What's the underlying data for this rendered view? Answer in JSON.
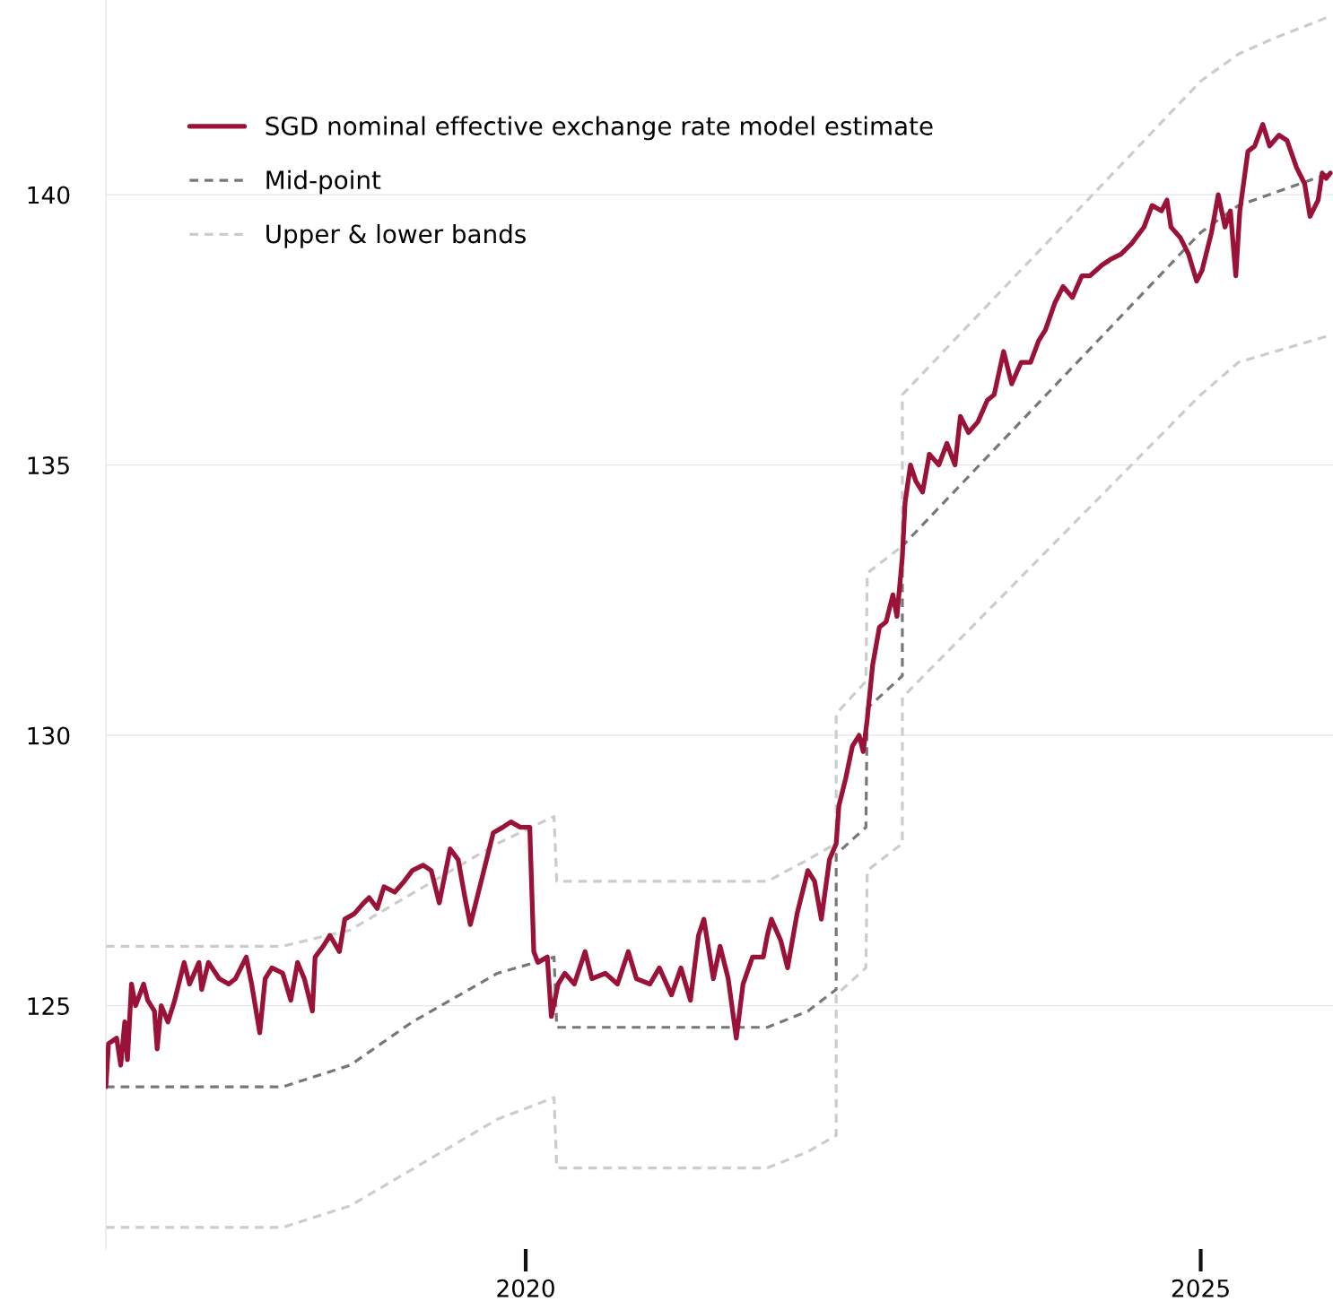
{
  "chart_data": {
    "type": "line",
    "xlim": [
      2016.89,
      2025.98
    ],
    "xticks": [
      2020,
      2025
    ],
    "ylim": [
      120.5,
      143.6
    ],
    "yticks": [
      125,
      130,
      135,
      140
    ],
    "grid": "y",
    "legend": "top left",
    "series": [
      {
        "name": "SGD nominal effective exchange rate model estimate",
        "color": "#9b1239",
        "line_style": "solid",
        "x": [
          2016.89,
          2016.91,
          2016.97,
          2017.0,
          2017.03,
          2017.05,
          2017.08,
          2017.11,
          2017.17,
          2017.2,
          2017.25,
          2017.27,
          2017.3,
          2017.35,
          2017.4,
          2017.47,
          2017.51,
          2017.58,
          2017.6,
          2017.65,
          2017.73,
          2017.8,
          2017.85,
          2017.93,
          2017.97,
          2018.03,
          2018.07,
          2018.12,
          2018.2,
          2018.26,
          2018.31,
          2018.36,
          2018.42,
          2018.44,
          2018.5,
          2018.55,
          2018.62,
          2018.66,
          2018.73,
          2018.8,
          2018.84,
          2018.9,
          2018.95,
          2019.03,
          2019.1,
          2019.16,
          2019.24,
          2019.3,
          2019.36,
          2019.44,
          2019.5,
          2019.55,
          2019.59,
          2019.64,
          2019.71,
          2019.76,
          2019.83,
          2019.89,
          2019.96,
          2020.03,
          2020.06,
          2020.09,
          2020.16,
          2020.19,
          2020.24,
          2020.29,
          2020.36,
          2020.44,
          2020.49,
          2020.59,
          2020.68,
          2020.76,
          2020.82,
          2020.92,
          2020.99,
          2021.08,
          2021.15,
          2021.22,
          2021.28,
          2021.32,
          2021.39,
          2021.44,
          2021.5,
          2021.56,
          2021.61,
          2021.68,
          2021.76,
          2021.79,
          2021.82,
          2021.89,
          2021.94,
          2022.01,
          2022.09,
          2022.14,
          2022.19,
          2022.25,
          2022.3,
          2022.32,
          2022.37,
          2022.42,
          2022.47,
          2022.5,
          2022.53,
          2022.57,
          2022.62,
          2022.67,
          2022.72,
          2022.75,
          2022.79,
          2022.81,
          2022.85,
          2022.89,
          2022.94,
          2022.99,
          2023.06,
          2023.12,
          2023.18,
          2023.22,
          2023.28,
          2023.35,
          2023.42,
          2023.47,
          2023.54,
          2023.6,
          2023.67,
          2023.74,
          2023.8,
          2023.85,
          2023.92,
          2023.98,
          2024.05,
          2024.12,
          2024.18,
          2024.27,
          2024.33,
          2024.41,
          2024.49,
          2024.58,
          2024.64,
          2024.71,
          2024.75,
          2024.78,
          2024.85,
          2024.91,
          2024.97,
          2025.01,
          2025.08,
          2025.13,
          2025.18,
          2025.22,
          2025.26,
          2025.29,
          2025.35,
          2025.4,
          2025.46,
          2025.51,
          2025.58,
          2025.64,
          2025.71,
          2025.77,
          2025.81,
          2025.87,
          2025.9,
          2025.93,
          2025.96
        ],
        "values": [
          123.5,
          124.3,
          124.4,
          123.9,
          124.7,
          124.0,
          125.4,
          125.0,
          125.4,
          125.1,
          124.9,
          124.2,
          125.0,
          124.7,
          125.1,
          125.8,
          125.4,
          125.8,
          125.3,
          125.8,
          125.5,
          125.4,
          125.5,
          125.9,
          125.4,
          124.5,
          125.5,
          125.7,
          125.6,
          125.1,
          125.8,
          125.5,
          124.9,
          125.9,
          126.1,
          126.3,
          126.0,
          126.6,
          126.7,
          126.9,
          127.0,
          126.8,
          127.2,
          127.1,
          127.3,
          127.5,
          127.6,
          127.5,
          126.9,
          127.9,
          127.7,
          127.0,
          126.5,
          127.0,
          127.7,
          128.2,
          128.3,
          128.4,
          128.3,
          128.3,
          126.0,
          125.8,
          125.9,
          124.8,
          125.4,
          125.6,
          125.4,
          126.0,
          125.5,
          125.6,
          125.4,
          126.0,
          125.5,
          125.4,
          125.7,
          125.2,
          125.7,
          125.1,
          126.3,
          126.6,
          125.5,
          126.1,
          125.5,
          124.4,
          125.4,
          125.9,
          125.9,
          126.3,
          126.6,
          126.2,
          125.7,
          126.7,
          127.5,
          127.3,
          126.6,
          127.7,
          128.0,
          128.7,
          129.2,
          129.8,
          130.0,
          129.7,
          130.3,
          131.3,
          132.0,
          132.1,
          132.6,
          132.2,
          133.3,
          134.3,
          135.0,
          134.7,
          134.5,
          135.2,
          135.0,
          135.4,
          135.0,
          135.9,
          135.6,
          135.8,
          136.2,
          136.3,
          137.1,
          136.5,
          136.9,
          136.9,
          137.3,
          137.5,
          138.0,
          138.3,
          138.1,
          138.5,
          138.5,
          138.7,
          138.8,
          138.9,
          139.1,
          139.4,
          139.8,
          139.7,
          139.9,
          139.4,
          139.2,
          138.9,
          138.4,
          138.6,
          139.3,
          140.0,
          139.4,
          139.7,
          138.5,
          139.7,
          140.8,
          140.9,
          141.3,
          140.9,
          141.1,
          141.0,
          140.5,
          140.2,
          139.6,
          139.9,
          140.4,
          140.3,
          140.4
        ]
      },
      {
        "name": "Mid-point",
        "color": "#777777",
        "line_style": "dashed",
        "x": [
          2016.89,
          2018.2,
          2018.7,
          2019.16,
          2019.79,
          2020.21,
          2020.23,
          2021.79,
          2022.09,
          2022.3,
          2022.3,
          2022.52,
          2022.53,
          2022.79,
          2022.79,
          2025.0,
          2025.28,
          2025.96
        ],
        "values": [
          123.5,
          123.5,
          123.9,
          124.7,
          125.6,
          125.9,
          124.6,
          124.6,
          124.9,
          125.3,
          127.8,
          128.3,
          130.5,
          131.1,
          133.5,
          139.3,
          139.8,
          140.4
        ]
      },
      {
        "name": "Upper & lower bands",
        "color": "#cccccc",
        "line_style": "dashed",
        "x": [
          2016.89,
          2018.2,
          2018.7,
          2019.79,
          2020.21,
          2020.23,
          2021.79,
          2022.09,
          2022.3,
          2022.3,
          2022.52,
          2022.53,
          2022.79,
          2022.79,
          2025.0,
          2025.28,
          2025.55,
          2025.96
        ],
        "values": [
          126.1,
          126.1,
          126.4,
          128.0,
          128.5,
          127.3,
          127.3,
          127.7,
          128.0,
          130.4,
          131.0,
          133.0,
          133.5,
          136.3,
          142.1,
          142.6,
          142.9,
          143.3
        ]
      },
      {
        "color": "#cccccc",
        "line_style": "dashed",
        "x": [
          2016.89,
          2018.2,
          2018.7,
          2019.79,
          2020.21,
          2020.23,
          2021.79,
          2022.09,
          2022.3,
          2022.3,
          2022.52,
          2022.53,
          2022.79,
          2022.79,
          2025.0,
          2025.28,
          2025.96
        ],
        "values": [
          120.9,
          120.9,
          121.3,
          122.9,
          123.3,
          122.0,
          122.0,
          122.3,
          122.6,
          125.2,
          125.7,
          127.5,
          128.0,
          130.7,
          136.3,
          136.9,
          137.4
        ]
      }
    ]
  }
}
